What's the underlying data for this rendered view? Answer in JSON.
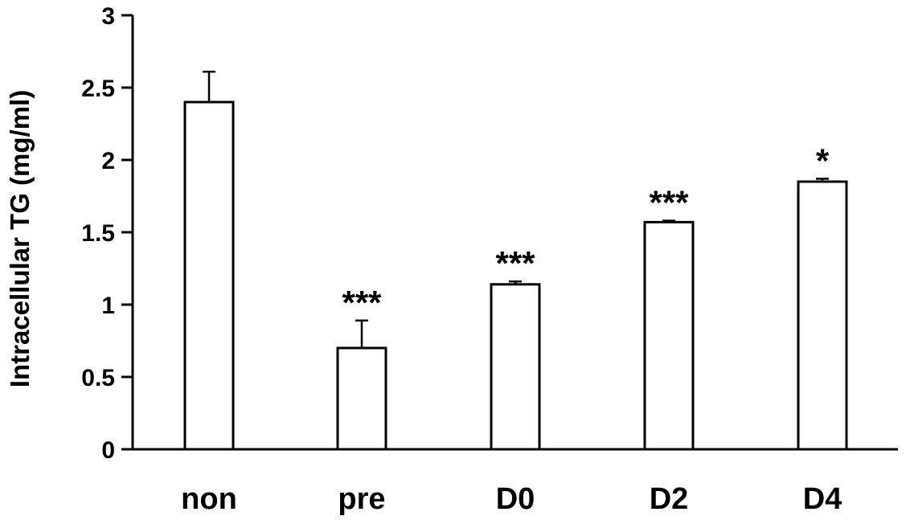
{
  "chart_data": {
    "type": "bar",
    "categories": [
      "non",
      "pre",
      "D0",
      "D2",
      "D4"
    ],
    "values": [
      2.4,
      0.7,
      1.14,
      1.57,
      1.85
    ],
    "error_bars": [
      0.21,
      0.19,
      0.02,
      0.01,
      0.02
    ],
    "significance": [
      "",
      "***",
      "***",
      "***",
      "*"
    ],
    "yticks": [
      "0",
      "0.5",
      "1",
      "1.5",
      "2",
      "2.5",
      "3"
    ],
    "ylabel": "Intracellular TG (mg/ml)",
    "xlabel": "",
    "title": "",
    "ylim": [
      0,
      3
    ],
    "grid": false,
    "bar_fill": "#ffffff",
    "bar_stroke": "#000000"
  }
}
